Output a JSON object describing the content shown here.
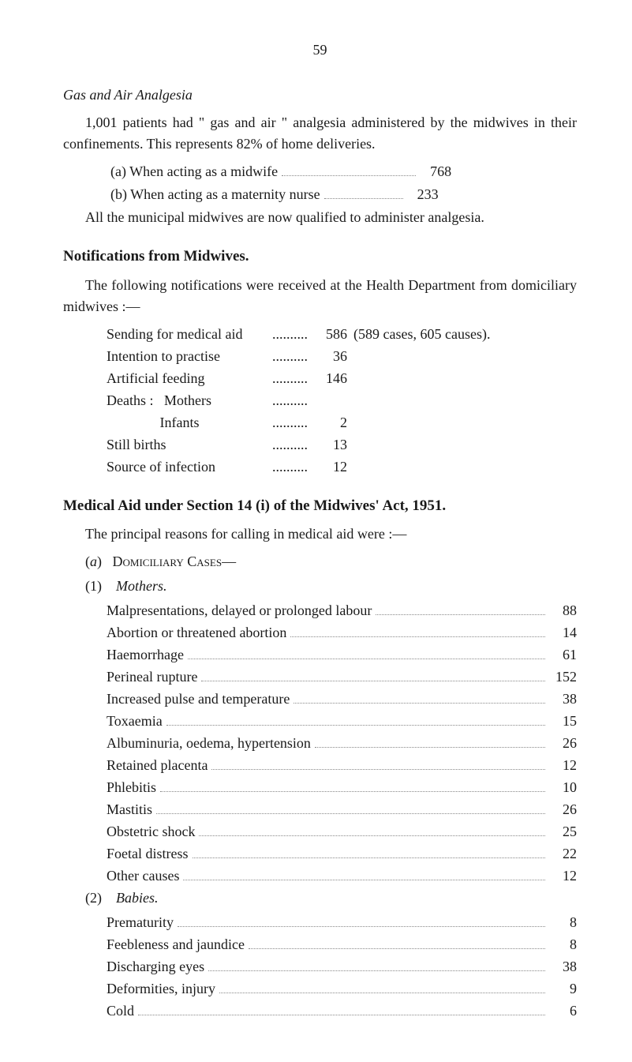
{
  "page_number": "59",
  "gas_air": {
    "heading": "Gas and Air Analgesia",
    "para1": "1,001 patients had \" gas and air \" analgesia administered by the midwives in their confinements. This represents 82% of home deliveries.",
    "item_a_label": "(a)  When acting as a midwife",
    "item_a_value": "768",
    "item_b_label": "(b)  When acting as a maternity nurse",
    "item_b_value": "233",
    "para2": "All the municipal midwives are now qualified to administer analgesia."
  },
  "notifications": {
    "heading": "Notifications from Midwives.",
    "intro": "The following notifications were received at the Health Department from domiciliary midwives :—",
    "rows": [
      {
        "label": "Sending for medical aid",
        "value": "586",
        "extra": "(589 cases, 605 causes)."
      },
      {
        "label": "Intention to practise",
        "value": "36",
        "extra": ""
      },
      {
        "label": "Artificial feeding",
        "value": "146",
        "extra": ""
      },
      {
        "label": "Deaths :   Mothers",
        "value": "",
        "extra": ""
      },
      {
        "label": "               Infants",
        "value": "2",
        "extra": ""
      },
      {
        "label": "Still births",
        "value": "13",
        "extra": ""
      },
      {
        "label": "Source of infection",
        "value": "12",
        "extra": ""
      }
    ]
  },
  "medical_aid": {
    "heading": "Medical Aid under Section 14 (i) of the Midwives' Act, 1951.",
    "intro": "The principal reasons for calling in medical aid were :—",
    "section_a": "(a)   Domiciliary Cases—",
    "sub1": "(1)    Mothers.",
    "mothers": [
      {
        "label": "Malpresentations, delayed or prolonged labour",
        "value": "88"
      },
      {
        "label": "Abortion or threatened abortion",
        "value": "14"
      },
      {
        "label": "Haemorrhage",
        "value": "61"
      },
      {
        "label": "Perineal rupture",
        "value": "152"
      },
      {
        "label": "Increased pulse and temperature",
        "value": "38"
      },
      {
        "label": "Toxaemia",
        "value": "15"
      },
      {
        "label": "Albuminuria, oedema, hypertension",
        "value": "26"
      },
      {
        "label": "Retained placenta",
        "value": "12"
      },
      {
        "label": "Phlebitis",
        "value": "10"
      },
      {
        "label": "Mastitis",
        "value": "26"
      },
      {
        "label": "Obstetric shock",
        "value": "25"
      },
      {
        "label": "Foetal distress",
        "value": "22"
      },
      {
        "label": "Other causes",
        "value": "12"
      }
    ],
    "sub2": "(2)    Babies.",
    "babies": [
      {
        "label": "Prematurity",
        "value": "8"
      },
      {
        "label": "Feebleness and jaundice",
        "value": "8"
      },
      {
        "label": "Discharging eyes",
        "value": "38"
      },
      {
        "label": "Deformities, injury",
        "value": "9"
      },
      {
        "label": "Cold",
        "value": "6"
      }
    ]
  }
}
